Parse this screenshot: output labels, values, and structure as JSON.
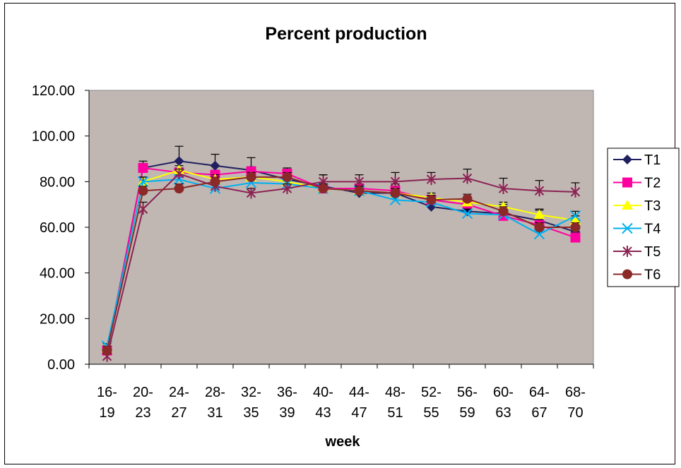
{
  "chart_data": {
    "type": "line",
    "title": "Percent production",
    "xlabel": "week",
    "ylabel": "",
    "categories": [
      "16-19",
      "20-23",
      "24-27",
      "28-31",
      "32-35",
      "36-39",
      "40-43",
      "44-47",
      "48-51",
      "52-55",
      "56-59",
      "60-63",
      "64-67",
      "68-70"
    ],
    "category_lines": [
      [
        "16-",
        "19"
      ],
      [
        "20-",
        "23"
      ],
      [
        "24-",
        "27"
      ],
      [
        "28-",
        "31"
      ],
      [
        "32-",
        "35"
      ],
      [
        "36-",
        "39"
      ],
      [
        "40-",
        "43"
      ],
      [
        "44-",
        "47"
      ],
      [
        "48-",
        "51"
      ],
      [
        "52-",
        "55"
      ],
      [
        "56-",
        "59"
      ],
      [
        "60-",
        "63"
      ],
      [
        "64-",
        "67"
      ],
      [
        "68-",
        "70"
      ]
    ],
    "ylim": [
      0,
      120
    ],
    "ytick_labels": [
      "0.00",
      "20.00",
      "40.00",
      "60.00",
      "80.00",
      "100.00",
      "120.00"
    ],
    "plot_background": "#c0b7b3",
    "grid": false,
    "legend_position": "right",
    "error_bars": true,
    "series": [
      {
        "name": "T1",
        "color": "#202060",
        "marker": "diamond",
        "values": [
          5.5,
          86,
          89,
          87,
          85,
          81,
          78,
          75,
          75,
          69,
          67,
          66,
          63,
          58
        ],
        "errors": [
          1,
          3,
          6.5,
          5,
          5.5,
          5,
          5,
          4,
          4,
          4,
          5,
          4,
          5,
          5
        ]
      },
      {
        "name": "T2",
        "color": "#ff00a0",
        "marker": "square",
        "values": [
          6,
          86,
          84,
          83,
          84.5,
          83.5,
          77,
          77,
          76,
          72,
          70,
          65,
          61,
          55.5
        ],
        "errors": [
          1,
          2,
          2,
          2,
          2,
          2,
          2,
          2,
          2,
          2,
          2,
          2,
          2,
          2
        ]
      },
      {
        "name": "T3",
        "color": "#ffff00",
        "marker": "triangle",
        "values": [
          7,
          80,
          85,
          81,
          82,
          80,
          77,
          76,
          75,
          73,
          71,
          69,
          65.5,
          63
        ],
        "errors": [
          1,
          2,
          2,
          2,
          2,
          2,
          2,
          2,
          2,
          2,
          2,
          2,
          2,
          2
        ]
      },
      {
        "name": "T4",
        "color": "#00b0f0",
        "marker": "x",
        "values": [
          8,
          80,
          81,
          77,
          79.5,
          79,
          77,
          76,
          72,
          71,
          66,
          65.5,
          57,
          65
        ],
        "errors": [
          1,
          2,
          2,
          2,
          2,
          2,
          2,
          2,
          2,
          2,
          2,
          2,
          2,
          2
        ]
      },
      {
        "name": "T5",
        "color": "#8b2252",
        "marker": "star",
        "values": [
          3.5,
          68,
          83.5,
          78,
          75,
          77,
          80,
          80,
          80,
          81,
          81.5,
          77,
          76,
          75.5
        ],
        "errors": [
          1,
          3,
          2,
          2,
          2,
          2,
          3,
          3,
          4,
          3,
          4,
          4.5,
          4.5,
          4
        ]
      },
      {
        "name": "T6",
        "color": "#8b2828",
        "marker": "circle",
        "values": [
          6,
          76,
          77,
          80,
          82,
          82,
          77,
          76,
          75,
          72,
          72.5,
          67,
          60,
          60
        ],
        "errors": [
          1,
          2,
          2,
          2,
          2,
          2,
          2,
          2,
          2,
          2,
          2,
          2,
          2,
          2
        ]
      }
    ]
  }
}
